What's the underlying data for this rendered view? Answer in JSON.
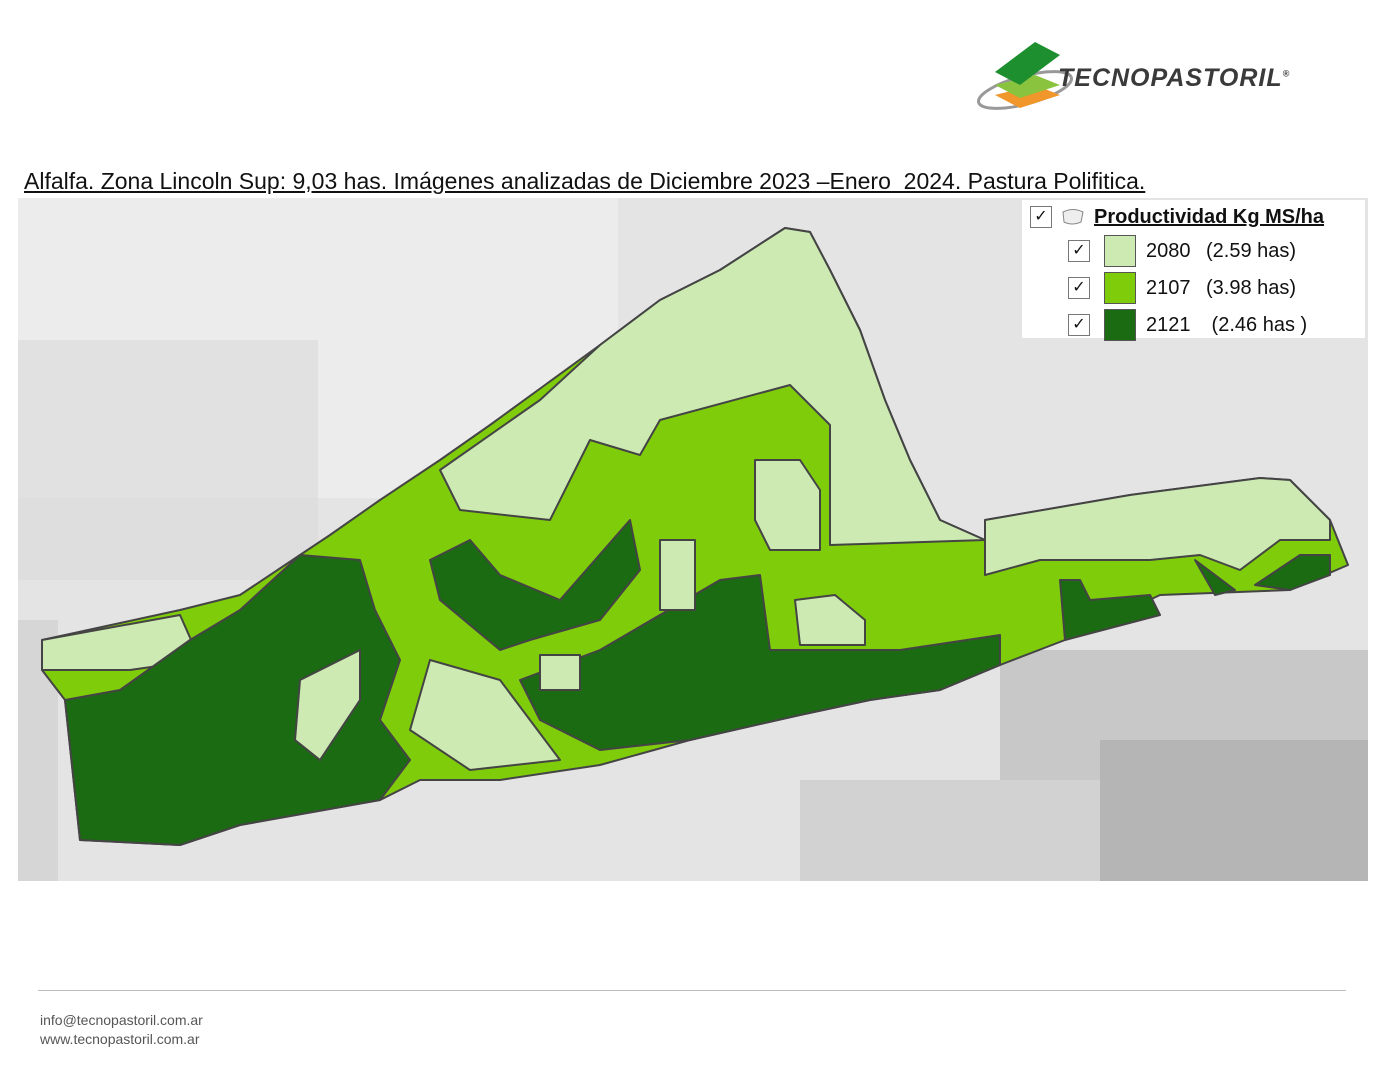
{
  "header": {
    "logo_text": "TECNOPASTORIL",
    "logo_mark": "®"
  },
  "title": "Alfalfa. Zona Lincoln Sup: 9,03 has. Imágenes analizadas de Diciembre 2023 –Enero  2024. Pastura Polifitica.",
  "legend": {
    "title": "Productividad Kg MS/ha",
    "items": [
      {
        "value": "2080",
        "area": "(2.59 has)",
        "color": "#cdeab3"
      },
      {
        "value": "2107",
        "area": "(3.98 has)",
        "color": "#7fcc0a"
      },
      {
        "value": "2121",
        "area": " (2.46 has )",
        "color": "#1b6b12"
      }
    ]
  },
  "footer": {
    "email": "info@tecnopastoril.com.ar",
    "web": "www.tecnopastoril.com.ar"
  }
}
